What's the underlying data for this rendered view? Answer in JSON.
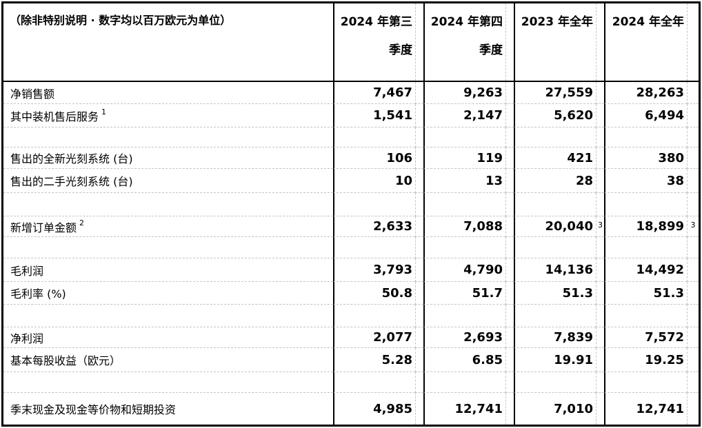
{
  "colors": {
    "border": "#000000",
    "gridline": "#c4c4c4",
    "text": "#000000",
    "background": "#ffffff"
  },
  "table": {
    "unit_note": "（除非特别说明 · 数字均以百万欧元为单位）",
    "columns": [
      {
        "line1": "2024 年第三",
        "line2": "季度"
      },
      {
        "line1": "2024 年第四",
        "line2": "季度"
      },
      {
        "line1": "2023 年全年",
        "line2": ""
      },
      {
        "line1": "2024 年全年",
        "line2": ""
      }
    ],
    "rows": [
      {
        "label": "净销售额",
        "label_sup": "",
        "values": [
          "7,467",
          "9,263",
          "27,559",
          "28,263"
        ],
        "value_sups": [
          "",
          "",
          "",
          ""
        ]
      },
      {
        "label": "其中装机售后服务",
        "label_sup": "1",
        "values": [
          "1,541",
          "2,147",
          "5,620",
          "6,494"
        ],
        "value_sups": [
          "",
          "",
          "",
          ""
        ]
      },
      {
        "empty": true,
        "label": "",
        "label_sup": "",
        "values": [
          "",
          "",
          "",
          ""
        ],
        "value_sups": [
          "",
          "",
          "",
          ""
        ]
      },
      {
        "label": "售出的全新光刻系统 (台)",
        "label_sup": "",
        "values": [
          "106",
          "119",
          "421",
          "380"
        ],
        "value_sups": [
          "",
          "",
          "",
          ""
        ]
      },
      {
        "label": "售出的二手光刻系统 (台)",
        "label_sup": "",
        "values": [
          "10",
          "13",
          "28",
          "38"
        ],
        "value_sups": [
          "",
          "",
          "",
          ""
        ]
      },
      {
        "empty": true,
        "label": "",
        "label_sup": "",
        "values": [
          "",
          "",
          "",
          ""
        ],
        "value_sups": [
          "",
          "",
          "",
          ""
        ]
      },
      {
        "label": "新增订单金额",
        "label_sup": "2",
        "values": [
          "2,633",
          "7,088",
          "20,040",
          "18,899"
        ],
        "value_sups": [
          "",
          "",
          "3",
          "3"
        ]
      },
      {
        "empty": true,
        "label": "",
        "label_sup": "",
        "values": [
          "",
          "",
          "",
          ""
        ],
        "value_sups": [
          "",
          "",
          "",
          ""
        ]
      },
      {
        "label": "毛利润",
        "label_sup": "",
        "values": [
          "3,793",
          "4,790",
          "14,136",
          "14,492"
        ],
        "value_sups": [
          "",
          "",
          "",
          ""
        ]
      },
      {
        "label": "毛利率 (%)",
        "label_sup": "",
        "values": [
          "50.8",
          "51.7",
          "51.3",
          "51.3"
        ],
        "value_sups": [
          "",
          "",
          "",
          ""
        ]
      },
      {
        "empty": true,
        "label": "",
        "label_sup": "",
        "values": [
          "",
          "",
          "",
          ""
        ],
        "value_sups": [
          "",
          "",
          "",
          ""
        ]
      },
      {
        "label": "净利润",
        "label_sup": "",
        "values": [
          "2,077",
          "2,693",
          "7,839",
          "7,572"
        ],
        "value_sups": [
          "",
          "",
          "",
          ""
        ]
      },
      {
        "label": "基本每股收益（欧元）",
        "label_sup": "",
        "values": [
          "5.28",
          "6.85",
          "19.91",
          "19.25"
        ],
        "value_sups": [
          "",
          "",
          "",
          ""
        ]
      },
      {
        "empty": true,
        "label": "",
        "label_sup": "",
        "values": [
          "",
          "",
          "",
          ""
        ],
        "value_sups": [
          "",
          "",
          "",
          ""
        ]
      },
      {
        "label": "季末现金及现金等价物和短期投资",
        "label_sup": "",
        "values": [
          "4,985",
          "12,741",
          "7,010",
          "12,741"
        ],
        "value_sups": [
          "",
          "",
          "",
          ""
        ]
      }
    ]
  }
}
